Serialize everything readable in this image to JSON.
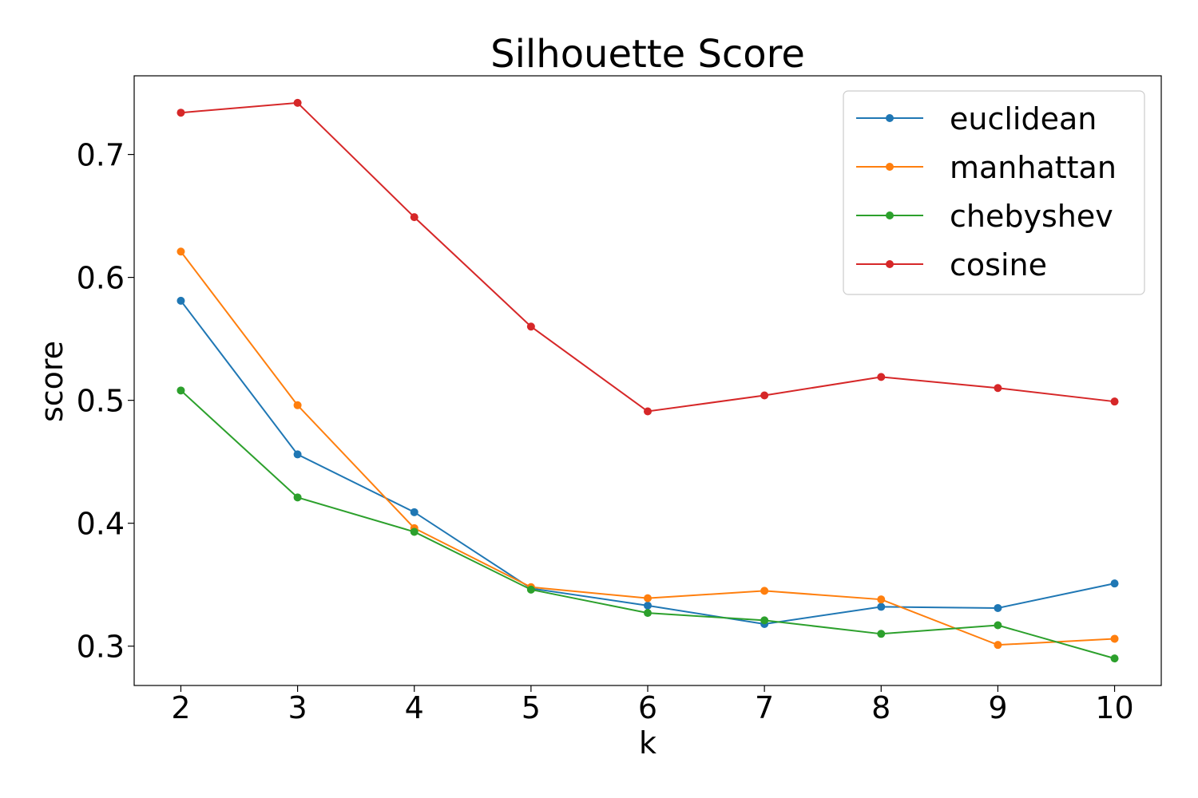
{
  "chart_data": {
    "type": "line",
    "title": "Silhouette Score",
    "xlabel": "k",
    "ylabel": "score",
    "x": [
      2,
      3,
      4,
      5,
      6,
      7,
      8,
      9,
      10
    ],
    "xlim": [
      1.6,
      10.4
    ],
    "ylim": [
      0.268,
      0.764
    ],
    "yticks": [
      0.3,
      0.4,
      0.5,
      0.6,
      0.7
    ],
    "ytick_labels": [
      "0.3",
      "0.4",
      "0.5",
      "0.6",
      "0.7"
    ],
    "xtick_labels": [
      "2",
      "3",
      "4",
      "5",
      "6",
      "7",
      "8",
      "9",
      "10"
    ],
    "grid": false,
    "legend_position": "top-right",
    "series": [
      {
        "name": "euclidean",
        "color": "#1f77b4",
        "values": [
          0.581,
          0.456,
          0.409,
          0.347,
          0.333,
          0.318,
          0.332,
          0.331,
          0.351
        ]
      },
      {
        "name": "manhattan",
        "color": "#ff7f0e",
        "values": [
          0.621,
          0.496,
          0.396,
          0.348,
          0.339,
          0.345,
          0.338,
          0.301,
          0.306
        ]
      },
      {
        "name": "chebyshev",
        "color": "#2ca02c",
        "values": [
          0.508,
          0.421,
          0.393,
          0.346,
          0.327,
          0.321,
          0.31,
          0.317,
          0.29
        ]
      },
      {
        "name": "cosine",
        "color": "#d62728",
        "values": [
          0.734,
          0.742,
          0.649,
          0.56,
          0.491,
          0.504,
          0.519,
          0.51,
          0.499
        ]
      }
    ]
  }
}
